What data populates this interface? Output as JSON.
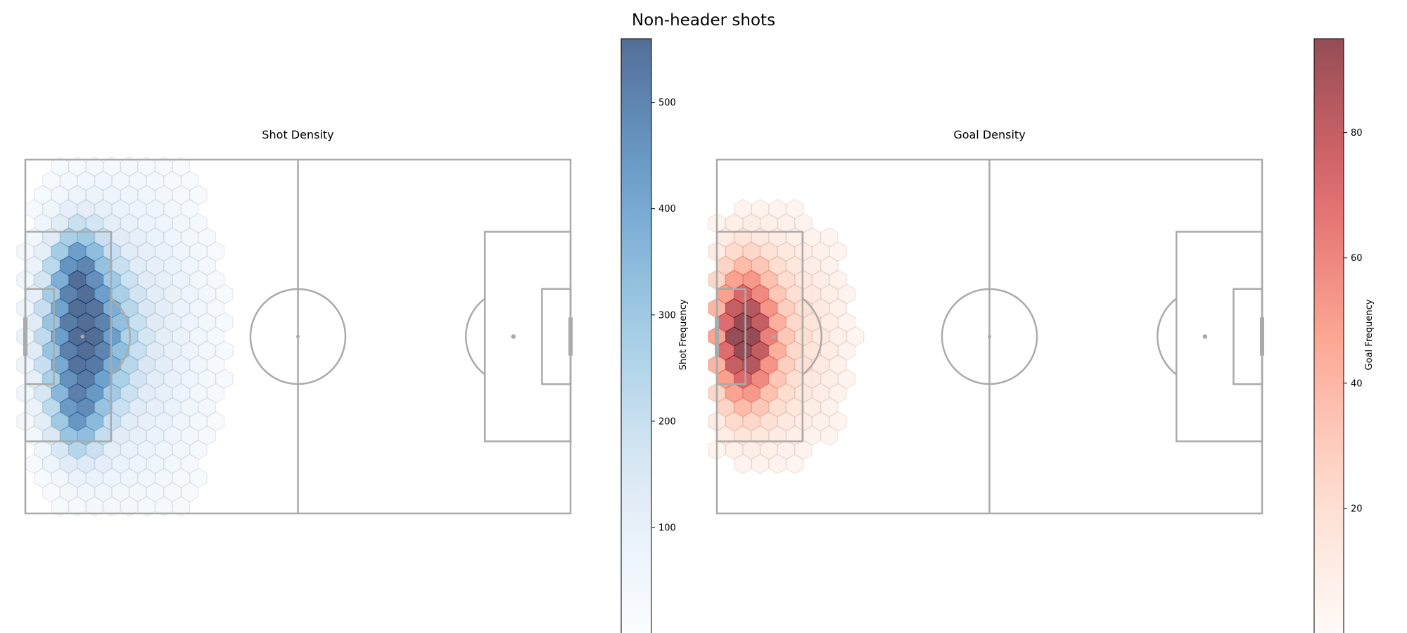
{
  "figure": {
    "title": "Non-header shots"
  },
  "chart_data": [
    {
      "type": "heatmap",
      "title": "Shot Density",
      "colorbar_label": "Shot Frequency",
      "colormap": "Blues",
      "color_low": "#f7fbff",
      "color_high": "#08306b",
      "value_range": [
        0,
        560
      ],
      "colorbar_ticks": [
        "100",
        "200",
        "300",
        "400",
        "500"
      ],
      "colorbar_tick_values": [
        100,
        200,
        300,
        400,
        500
      ],
      "peak_cells": [
        {
          "x": 10.2,
          "y": 40.4,
          "value": 555
        },
        {
          "x": 10.2,
          "y": 48.9,
          "value": 545
        },
        {
          "x": 10.2,
          "y": 15.5,
          "value": 500
        },
        {
          "x": 10.2,
          "y": 35.0,
          "value": 480
        },
        {
          "x": 9.2,
          "y": 45.9,
          "value": 470
        },
        {
          "x": 9.2,
          "y": 19.5,
          "value": 460
        },
        {
          "x": 8.2,
          "y": 25.0,
          "value": 440
        },
        {
          "x": 10.2,
          "y": 27.0,
          "value": 420
        },
        {
          "x": 4.5,
          "y": 27.8,
          "value": 400
        },
        {
          "x": 14.5,
          "y": 27.8,
          "value": 390
        }
      ]
    },
    {
      "type": "heatmap",
      "title": "Goal Density",
      "colorbar_label": "Goal Frequency",
      "colormap": "Reds",
      "color_low": "#fff5f0",
      "color_high": "#67000d",
      "value_range": [
        0,
        95
      ],
      "colorbar_ticks": [
        "20",
        "40",
        "60",
        "80"
      ],
      "colorbar_tick_values": [
        20,
        40,
        60,
        80
      ],
      "peak_cells": [
        {
          "x": 4.0,
          "y": 35.0,
          "value": 93
        },
        {
          "x": 3.0,
          "y": 35.0,
          "value": 88
        },
        {
          "x": 3.0,
          "y": 30.0,
          "value": 85
        },
        {
          "x": 8.0,
          "y": 25.0,
          "value": 80
        },
        {
          "x": 9.0,
          "y": 22.0,
          "value": 78
        },
        {
          "x": 5.0,
          "y": 38.0,
          "value": 75
        }
      ]
    }
  ]
}
